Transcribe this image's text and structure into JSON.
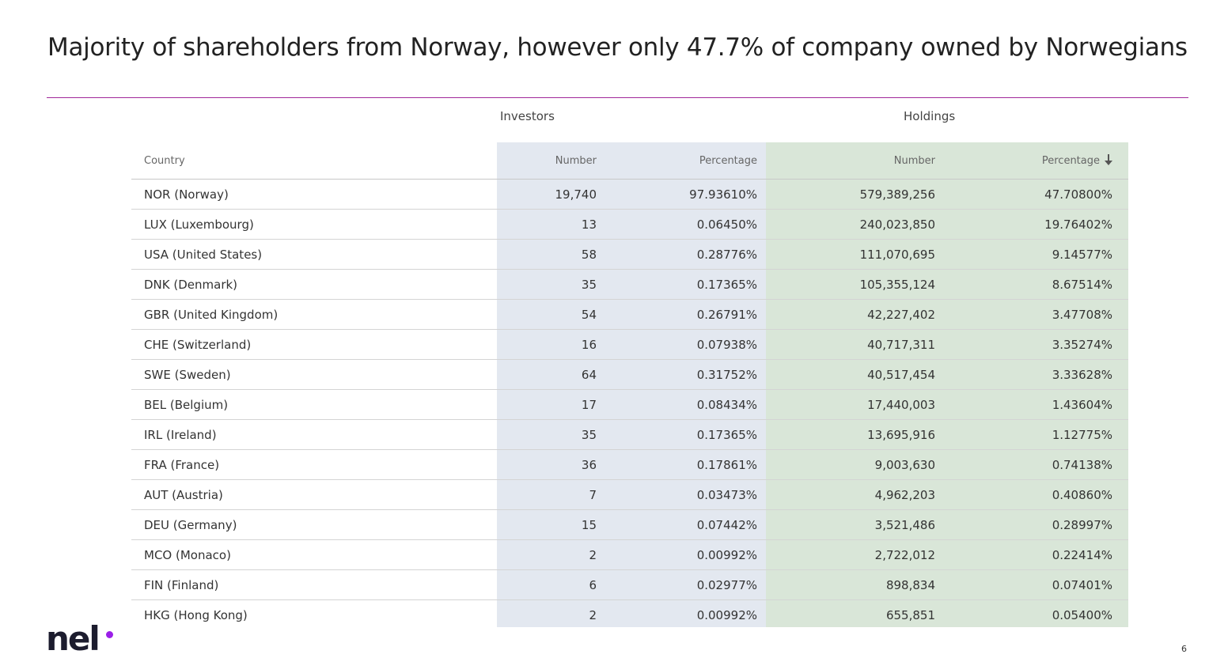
{
  "title": "Majority of shareholders from Norway, however only 47.7% of company owned by Norwegians",
  "groups": {
    "investors": "Investors",
    "holdings": "Holdings"
  },
  "columns": {
    "country": "Country",
    "investors_number": "Number",
    "investors_percentage": "Percentage",
    "holdings_number": "Number",
    "holdings_percentage": "Percentage"
  },
  "sort_icon": "arrow-down-icon",
  "rows": [
    {
      "country": "NOR (Norway)",
      "inv_number": "19,740",
      "inv_pct": "97.93610%",
      "hold_number": "579,389,256",
      "hold_pct": "47.70800%"
    },
    {
      "country": "LUX (Luxembourg)",
      "inv_number": "13",
      "inv_pct": "0.06450%",
      "hold_number": "240,023,850",
      "hold_pct": "19.76402%"
    },
    {
      "country": "USA (United States)",
      "inv_number": "58",
      "inv_pct": "0.28776%",
      "hold_number": "111,070,695",
      "hold_pct": "9.14577%"
    },
    {
      "country": "DNK (Denmark)",
      "inv_number": "35",
      "inv_pct": "0.17365%",
      "hold_number": "105,355,124",
      "hold_pct": "8.67514%"
    },
    {
      "country": "GBR (United Kingdom)",
      "inv_number": "54",
      "inv_pct": "0.26791%",
      "hold_number": "42,227,402",
      "hold_pct": "3.47708%"
    },
    {
      "country": "CHE (Switzerland)",
      "inv_number": "16",
      "inv_pct": "0.07938%",
      "hold_number": "40,717,311",
      "hold_pct": "3.35274%"
    },
    {
      "country": "SWE (Sweden)",
      "inv_number": "64",
      "inv_pct": "0.31752%",
      "hold_number": "40,517,454",
      "hold_pct": "3.33628%"
    },
    {
      "country": "BEL (Belgium)",
      "inv_number": "17",
      "inv_pct": "0.08434%",
      "hold_number": "17,440,003",
      "hold_pct": "1.43604%"
    },
    {
      "country": "IRL (Ireland)",
      "inv_number": "35",
      "inv_pct": "0.17365%",
      "hold_number": "13,695,916",
      "hold_pct": "1.12775%"
    },
    {
      "country": "FRA (France)",
      "inv_number": "36",
      "inv_pct": "0.17861%",
      "hold_number": "9,003,630",
      "hold_pct": "0.74138%"
    },
    {
      "country": "AUT (Austria)",
      "inv_number": "7",
      "inv_pct": "0.03473%",
      "hold_number": "4,962,203",
      "hold_pct": "0.40860%"
    },
    {
      "country": "DEU (Germany)",
      "inv_number": "15",
      "inv_pct": "0.07442%",
      "hold_number": "3,521,486",
      "hold_pct": "0.28997%"
    },
    {
      "country": "MCO (Monaco)",
      "inv_number": "2",
      "inv_pct": "0.00992%",
      "hold_number": "2,722,012",
      "hold_pct": "0.22414%"
    },
    {
      "country": "FIN (Finland)",
      "inv_number": "6",
      "inv_pct": "0.02977%",
      "hold_number": "898,834",
      "hold_pct": "0.07401%"
    },
    {
      "country": "HKG (Hong Kong)",
      "inv_number": "2",
      "inv_pct": "0.00992%",
      "hold_number": "655,851",
      "hold_pct": "0.05400%"
    }
  ],
  "logo": {
    "text": "nel",
    "dot_color": "#9b1fe8"
  },
  "page_number": "6",
  "colors": {
    "rule": "#a0279a",
    "investors_band": "#e3e8f0",
    "holdings_band": "#d9e6d8"
  }
}
